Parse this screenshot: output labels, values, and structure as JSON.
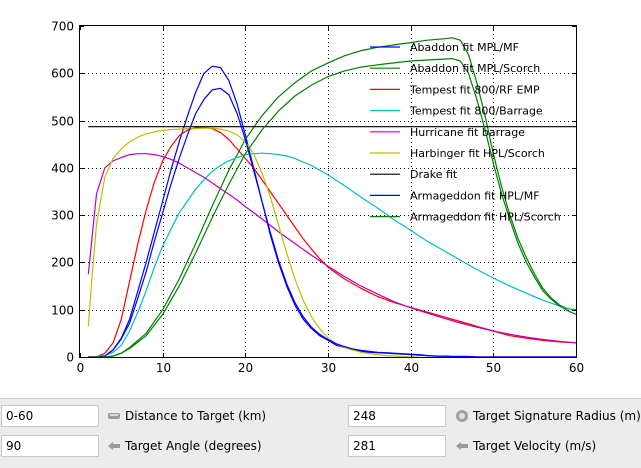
{
  "chart_data": {
    "type": "line",
    "xlim": [
      0,
      60
    ],
    "ylim": [
      0,
      700
    ],
    "x_ticks": [
      "0",
      "10",
      "20",
      "30",
      "40",
      "50",
      "60"
    ],
    "y_ticks": [
      "0",
      "100",
      "200",
      "300",
      "400",
      "500",
      "600",
      "700"
    ],
    "grid": true,
    "legend_position": "top-right",
    "series": [
      {
        "name": "Abaddon fit MPL/MF",
        "color": "#0000ff",
        "x": [
          1,
          2,
          3,
          4,
          5,
          6,
          7,
          8,
          9,
          10,
          11,
          12,
          13,
          14,
          15,
          16,
          17,
          18,
          19,
          20,
          21,
          22,
          23,
          24,
          25,
          26,
          27,
          28,
          29,
          30,
          31,
          32,
          33,
          34,
          35,
          36,
          37,
          38,
          39,
          40,
          41,
          42,
          43,
          44,
          45,
          46,
          47,
          48,
          49,
          50,
          51,
          52,
          53,
          54,
          55,
          56,
          57,
          58,
          59,
          60
        ],
        "y": [
          0,
          0,
          2,
          15,
          40,
          80,
          140,
          200,
          265,
          330,
          395,
          455,
          510,
          560,
          600,
          615,
          612,
          585,
          535,
          470,
          400,
          330,
          260,
          200,
          150,
          110,
          80,
          60,
          45,
          35,
          25,
          20,
          15,
          12,
          10,
          9,
          8,
          7,
          6,
          5,
          4,
          3,
          2,
          2,
          1,
          1,
          1,
          0,
          0,
          0,
          0,
          0,
          0,
          0,
          0,
          0,
          0,
          0,
          0,
          0
        ]
      },
      {
        "name": "Abaddon fit MPL/Scorch",
        "color": "#008000",
        "x": [
          1,
          2,
          3,
          4,
          5,
          6,
          8,
          10,
          12,
          14,
          16,
          18,
          20,
          22,
          24,
          26,
          28,
          30,
          32,
          34,
          36,
          38,
          40,
          42,
          44,
          45,
          46,
          47,
          48,
          49,
          50,
          51,
          52,
          53,
          54,
          55,
          56,
          57,
          58,
          59,
          60
        ],
        "y": [
          0,
          0,
          0,
          2,
          8,
          20,
          50,
          100,
          165,
          240,
          320,
          395,
          460,
          510,
          550,
          580,
          605,
          622,
          637,
          648,
          655,
          660,
          665,
          670,
          673,
          675,
          670,
          640,
          580,
          510,
          430,
          360,
          300,
          250,
          210,
          175,
          145,
          125,
          110,
          102,
          100
        ]
      },
      {
        "name": "Tempest fit 800/RF EMP",
        "color": "#ff0000",
        "x": [
          1,
          2,
          3,
          4,
          5,
          6,
          7,
          8,
          9,
          10,
          11,
          12,
          13,
          14,
          15,
          16,
          17,
          18,
          19,
          20,
          21,
          22,
          23,
          24,
          25,
          26,
          27,
          28,
          29,
          30,
          32,
          34,
          36,
          38,
          40,
          42,
          44,
          46,
          48,
          50,
          52,
          54,
          56,
          58,
          60
        ],
        "y": [
          0,
          0,
          8,
          30,
          80,
          160,
          240,
          310,
          370,
          415,
          445,
          468,
          480,
          485,
          486,
          483,
          475,
          460,
          440,
          420,
          400,
          375,
          350,
          325,
          300,
          275,
          250,
          228,
          208,
          190,
          165,
          145,
          128,
          115,
          105,
          95,
          85,
          75,
          65,
          55,
          45,
          40,
          35,
          32,
          30
        ]
      },
      {
        "name": "Tempest fit 800/Barrage",
        "color": "#00bfbf",
        "x": [
          1,
          2,
          3,
          4,
          5,
          6,
          7,
          8,
          9,
          10,
          11,
          12,
          13,
          14,
          15,
          16,
          17,
          18,
          19,
          20,
          21,
          22,
          23,
          24,
          25,
          26,
          27,
          28,
          29,
          30,
          32,
          34,
          36,
          38,
          40,
          42,
          44,
          46,
          48,
          50,
          52,
          54,
          56,
          58,
          60
        ],
        "y": [
          0,
          0,
          3,
          10,
          25,
          55,
          95,
          140,
          190,
          235,
          270,
          305,
          330,
          355,
          375,
          393,
          405,
          415,
          422,
          428,
          430,
          431,
          430,
          428,
          425,
          420,
          412,
          405,
          395,
          385,
          362,
          338,
          315,
          290,
          268,
          245,
          225,
          205,
          185,
          167,
          150,
          135,
          120,
          108,
          98
        ]
      },
      {
        "name": "Hurricane fit barrage",
        "color": "#bf00bf",
        "x": [
          1,
          2,
          3,
          4,
          5,
          6,
          7,
          8,
          9,
          10,
          11,
          12,
          13,
          14,
          15,
          16,
          17,
          18,
          19,
          20,
          22,
          24,
          26,
          28,
          30,
          32,
          34,
          36,
          38,
          40,
          42,
          44,
          46,
          48,
          50,
          52,
          54,
          56,
          58,
          60
        ],
        "y": [
          175,
          345,
          400,
          415,
          422,
          428,
          430,
          430,
          428,
          424,
          418,
          410,
          400,
          390,
          380,
          368,
          356,
          344,
          332,
          318,
          292,
          265,
          240,
          215,
          192,
          170,
          150,
          133,
          117,
          104,
          93,
          82,
          72,
          63,
          55,
          48,
          42,
          37,
          33,
          30
        ]
      },
      {
        "name": "Harbinger fit HPL/Scorch",
        "color": "#bfbf00",
        "x": [
          1,
          1.5,
          2,
          3,
          4,
          5,
          6,
          7,
          8,
          9,
          10,
          11,
          12,
          13,
          14,
          15,
          16,
          17,
          18,
          19,
          20,
          21,
          22,
          23,
          24,
          25,
          26,
          27,
          28,
          29,
          30,
          31,
          32,
          33,
          34,
          35,
          36,
          37,
          38,
          39,
          40,
          41
        ],
        "y": [
          65,
          180,
          280,
          380,
          420,
          440,
          455,
          465,
          472,
          476,
          479,
          481,
          482,
          483,
          483,
          484,
          484,
          482,
          478,
          470,
          455,
          430,
          390,
          340,
          280,
          220,
          165,
          120,
          85,
          60,
          40,
          28,
          20,
          15,
          10,
          7,
          5,
          3,
          2,
          1,
          0,
          0
        ]
      },
      {
        "name": "Drake fit",
        "color": "#000000",
        "x": [
          1,
          60
        ],
        "y": [
          487,
          487
        ]
      },
      {
        "name": "Armageddon fit HPL/MF",
        "color": "#0000ff",
        "x": [
          1,
          2,
          3,
          4,
          5,
          6,
          7,
          8,
          9,
          10,
          11,
          12,
          13,
          14,
          15,
          16,
          17,
          18,
          19,
          20,
          21,
          22,
          23,
          24,
          25,
          26,
          27,
          28,
          29,
          30,
          31,
          32,
          33,
          34,
          35,
          36,
          37,
          38,
          39,
          40,
          41,
          42,
          43,
          44,
          45,
          46,
          47,
          48,
          49,
          50,
          51,
          52,
          53,
          54,
          55,
          56,
          57,
          58,
          59,
          60
        ],
        "y": [
          0,
          0,
          2,
          15,
          38,
          72,
          125,
          180,
          245,
          305,
          365,
          420,
          470,
          515,
          545,
          565,
          568,
          555,
          515,
          460,
          395,
          330,
          265,
          205,
          155,
          115,
          85,
          63,
          48,
          37,
          28,
          22,
          17,
          14,
          12,
          10,
          9,
          8,
          7,
          6,
          5,
          3,
          2,
          2,
          1,
          1,
          1,
          0,
          0,
          0,
          0,
          0,
          0,
          0,
          0,
          0,
          0,
          0,
          0,
          0
        ]
      },
      {
        "name": "Armageddon fit HPL/Scorch",
        "color": "#008000",
        "x": [
          1,
          2,
          3,
          4,
          5,
          6,
          8,
          10,
          12,
          14,
          16,
          18,
          20,
          22,
          24,
          26,
          28,
          30,
          32,
          34,
          36,
          38,
          40,
          42,
          44,
          45,
          46,
          47,
          48,
          49,
          50,
          51,
          52,
          53,
          54,
          55,
          56,
          57,
          58,
          59,
          60
        ],
        "y": [
          0,
          0,
          0,
          2,
          8,
          18,
          45,
          90,
          150,
          220,
          295,
          365,
          430,
          480,
          520,
          552,
          575,
          593,
          605,
          613,
          618,
          622,
          626,
          628,
          630,
          631,
          626,
          600,
          545,
          480,
          410,
          345,
          290,
          240,
          200,
          168,
          140,
          122,
          108,
          98,
          90
        ]
      }
    ]
  },
  "controls": {
    "distance_value": "0-60",
    "distance_label": "Distance to Target (km)",
    "angle_value": "90",
    "angle_label": "Target Angle (degrees)",
    "sig_value": "248",
    "sig_label": "Target Signature Radius (m)",
    "velocity_value": "281",
    "velocity_label": "Target Velocity (m/s)"
  }
}
